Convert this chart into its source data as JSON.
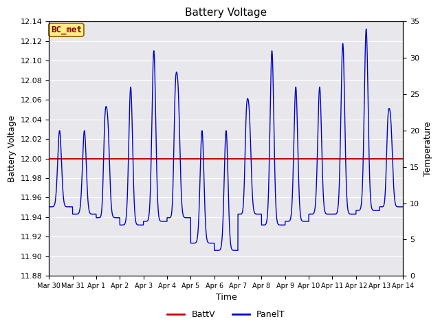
{
  "title": "Battery Voltage",
  "xlabel": "Time",
  "ylabel_left": "Battery Voltage",
  "ylabel_right": "Temperature",
  "ylim_left": [
    11.88,
    12.14
  ],
  "ylim_right": [
    0,
    35
  ],
  "yticks_left": [
    11.88,
    11.9,
    11.92,
    11.94,
    11.96,
    11.98,
    12.0,
    12.02,
    12.04,
    12.06,
    12.08,
    12.1,
    12.12,
    12.14
  ],
  "yticks_right": [
    0,
    5,
    10,
    15,
    20,
    25,
    30,
    35
  ],
  "batt_voltage": 12.0,
  "batt_color": "#cc0000",
  "panel_color": "#0000cc",
  "annotation_text": "BC_met",
  "annotation_bg": "#ffee88",
  "annotation_text_color": "#8b0000",
  "background_color": "#e8e8ec",
  "legend_labels": [
    "BattV",
    "PanelT"
  ],
  "xtick_labels": [
    "Mar 30",
    "Mar 31",
    "Apr 1",
    "Apr 2",
    "Apr 3",
    "Apr 4",
    "Apr 5",
    "Apr 6",
    "Apr 7",
    "Apr 8",
    "Apr 9",
    "Apr 10",
    "Apr 11",
    "Apr 12",
    "Apr 13",
    "Apr 14"
  ],
  "figsize": [
    6.4,
    4.8
  ],
  "dpi": 100
}
